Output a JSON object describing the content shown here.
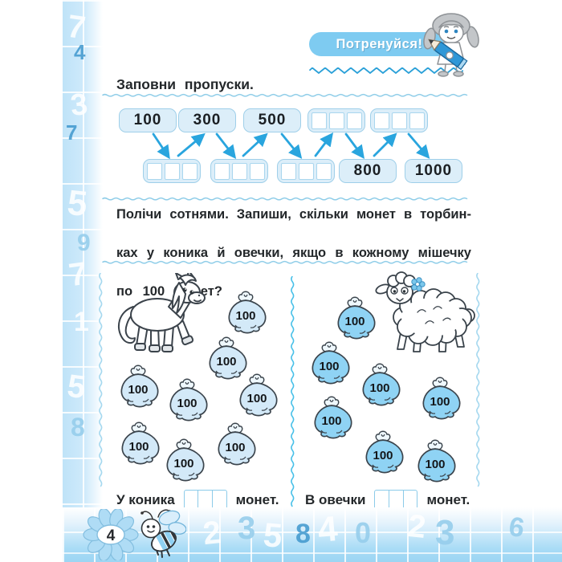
{
  "header": {
    "badge_label": "Потренуйся!"
  },
  "exercise1": {
    "title": "Заповни пропуски.",
    "top_row": [
      "100",
      "300",
      "500",
      "",
      ""
    ],
    "bottom_row": [
      "",
      "",
      "",
      "800",
      "1000"
    ]
  },
  "exercise2": {
    "instruction_line1": "Полічи сотнями. Запиши, скільки монет в торбин-",
    "instruction_line2": "ках у коника й овечки, якщо в кожному мішечку",
    "instruction_line3": "по 100 монет?",
    "bag_label": "100",
    "horse_bag_count": 8,
    "sheep_bag_count": 7,
    "answer_horse_prefix": "У коника",
    "answer_horse_suffix": "монет.",
    "answer_sheep_prefix": "В овечки",
    "answer_sheep_suffix": "монет."
  },
  "footer": {
    "page_number": "4"
  },
  "decor": {
    "left_margin_numbers": [
      "7",
      "4",
      "3",
      "7",
      "5",
      "9",
      "7",
      "1",
      "5",
      "8"
    ],
    "footer_numbers": [
      "2",
      "3",
      "5",
      "8",
      "4",
      "0",
      "2",
      "3",
      "6"
    ]
  },
  "colors": {
    "arrow": "#29a5de",
    "badge": "#7ecbf1",
    "box_fill": "#dceef9",
    "horse_bag": "#d3e9f8",
    "sheep_bag": "#8fd3f4",
    "wave": "#8fcde8",
    "footer_blue": "#9cd5f3"
  }
}
